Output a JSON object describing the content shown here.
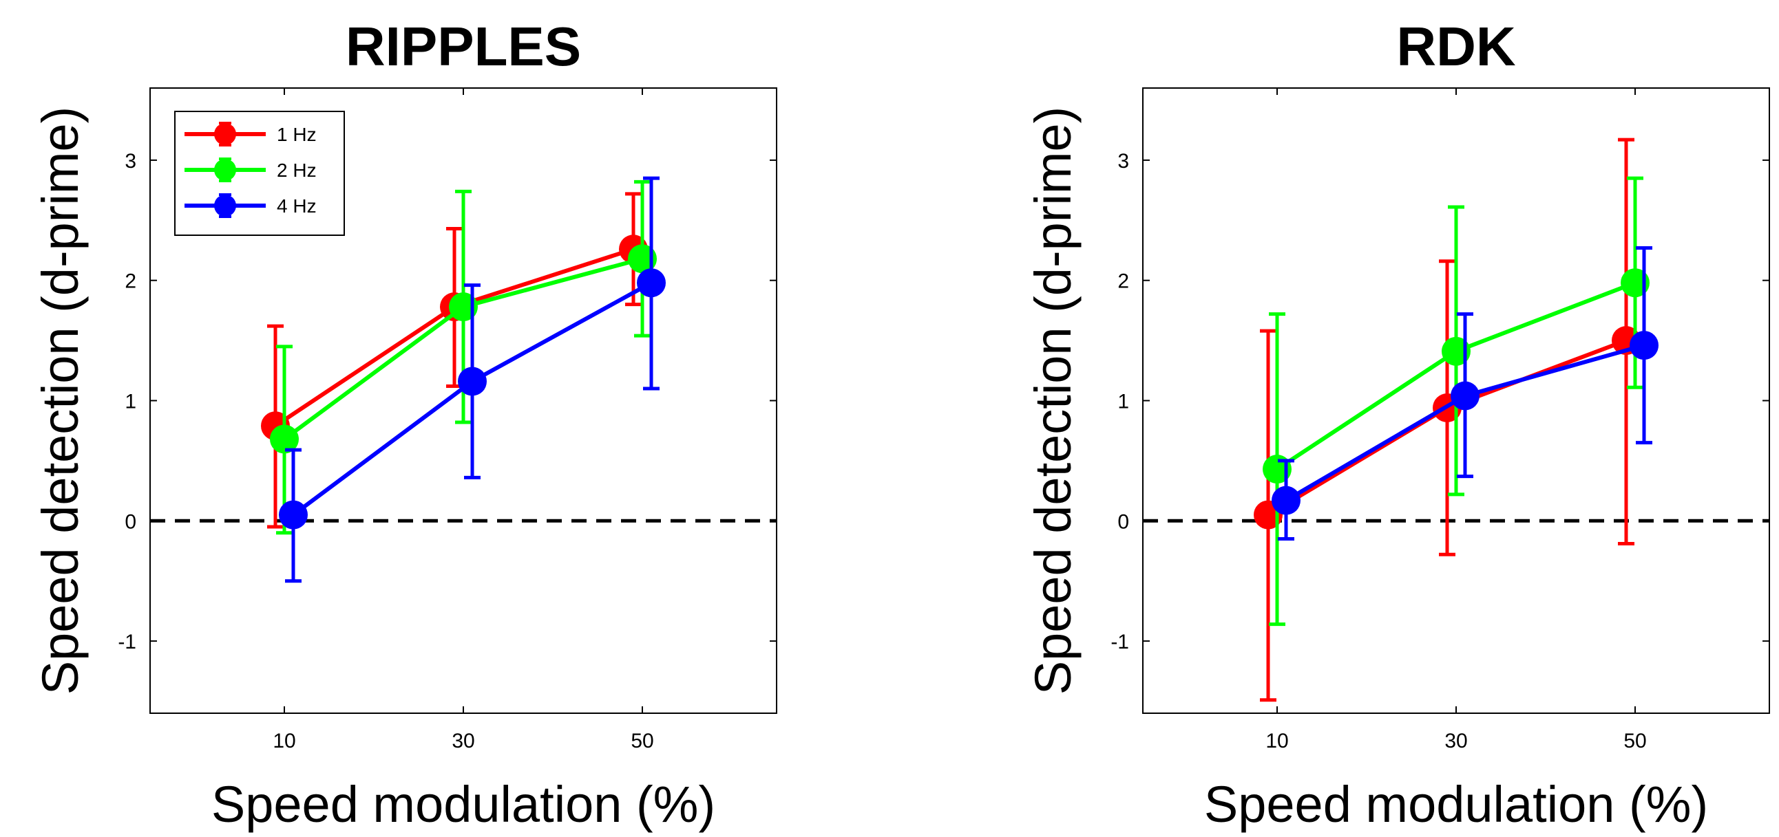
{
  "chart_data": [
    {
      "type": "line",
      "title": "RIPPLES",
      "xlabel": "Speed modulation (%)",
      "ylabel": "Speed detection (d-prime)",
      "x_ticks": [
        10,
        30,
        50
      ],
      "x_tick_labels": [
        "10",
        "30",
        "50"
      ],
      "y_ticks": [
        -1,
        0,
        1,
        2,
        3
      ],
      "y_tick_labels": [
        "-1",
        "0",
        "1",
        "2",
        "3"
      ],
      "xlim": [
        -5,
        65
      ],
      "ylim": [
        -1.6,
        3.6
      ],
      "reference_line": {
        "y": 0,
        "style": "dashed",
        "color": "#000000"
      },
      "legend": {
        "position": "top-left",
        "entries": [
          "1 Hz",
          "2 Hz",
          "4 Hz"
        ]
      },
      "series": [
        {
          "name": "1 Hz",
          "color": "#ff0000",
          "x": [
            9,
            29,
            49
          ],
          "y": [
            0.79,
            1.78,
            2.26
          ],
          "y_low": [
            -0.05,
            1.12,
            1.8
          ],
          "y_high": [
            1.62,
            2.43,
            2.72
          ]
        },
        {
          "name": "2 Hz",
          "color": "#00ff00",
          "x": [
            10,
            30,
            50
          ],
          "y": [
            0.68,
            1.78,
            2.18
          ],
          "y_low": [
            -0.1,
            0.82,
            1.54
          ],
          "y_high": [
            1.45,
            2.74,
            2.82
          ]
        },
        {
          "name": "4 Hz",
          "color": "#0000ff",
          "x": [
            11,
            31,
            51
          ],
          "y": [
            0.05,
            1.16,
            1.98
          ],
          "y_low": [
            -0.5,
            0.36,
            1.1
          ],
          "y_high": [
            0.59,
            1.96,
            2.85
          ]
        }
      ]
    },
    {
      "type": "line",
      "title": "RDK",
      "xlabel": "Speed modulation (%)",
      "ylabel": "Speed detection (d-prime)",
      "x_ticks": [
        10,
        30,
        50
      ],
      "x_tick_labels": [
        "10",
        "30",
        "50"
      ],
      "y_ticks": [
        -1,
        0,
        1,
        2,
        3
      ],
      "y_tick_labels": [
        "-1",
        "0",
        "1",
        "2",
        "3"
      ],
      "xlim": [
        -5,
        65
      ],
      "ylim": [
        -1.6,
        3.6
      ],
      "reference_line": {
        "y": 0,
        "style": "dashed",
        "color": "#000000"
      },
      "series": [
        {
          "name": "1 Hz",
          "color": "#ff0000",
          "x": [
            9,
            29,
            49
          ],
          "y": [
            0.05,
            0.94,
            1.5
          ],
          "y_low": [
            -1.49,
            -0.28,
            -0.19
          ],
          "y_high": [
            1.58,
            2.16,
            3.17
          ]
        },
        {
          "name": "2 Hz",
          "color": "#00ff00",
          "x": [
            10,
            30,
            50
          ],
          "y": [
            0.43,
            1.41,
            1.98
          ],
          "y_low": [
            -0.86,
            0.22,
            1.11
          ],
          "y_high": [
            1.72,
            2.61,
            2.85
          ]
        },
        {
          "name": "4 Hz",
          "color": "#0000ff",
          "x": [
            11,
            31,
            51
          ],
          "y": [
            0.17,
            1.04,
            1.46
          ],
          "y_low": [
            -0.15,
            0.37,
            0.65
          ],
          "y_high": [
            0.5,
            1.72,
            2.27
          ]
        }
      ]
    }
  ]
}
